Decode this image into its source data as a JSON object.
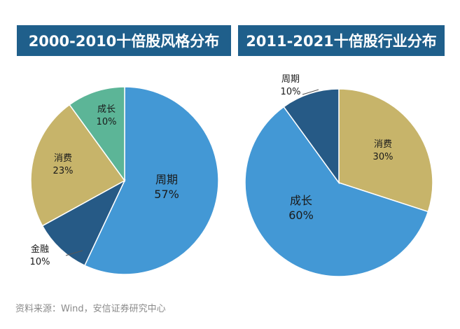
{
  "chart_data": [
    {
      "type": "pie",
      "title": "2000-2010十倍股风格分布",
      "slices": [
        {
          "label": "周期",
          "value": 57,
          "value_label": "57%",
          "color": "#4398d5"
        },
        {
          "label": "金融",
          "value": 10,
          "value_label": "10%",
          "color": "#265a86"
        },
        {
          "label": "消费",
          "value": 23,
          "value_label": "23%",
          "color": "#c7b46a"
        },
        {
          "label": "成长",
          "value": 10,
          "value_label": "10%",
          "color": "#5cb597"
        }
      ]
    },
    {
      "type": "pie",
      "title": "2011-2021十倍股行业分布",
      "slices": [
        {
          "label": "消费",
          "value": 30,
          "value_label": "30%",
          "color": "#c7b46a"
        },
        {
          "label": "成长",
          "value": 60,
          "value_label": "60%",
          "color": "#4398d5"
        },
        {
          "label": "周期",
          "value": 10,
          "value_label": "10%",
          "color": "#265a86"
        }
      ]
    }
  ],
  "footer": {
    "source": "资料来源：Wind，安信证券研究中心"
  }
}
